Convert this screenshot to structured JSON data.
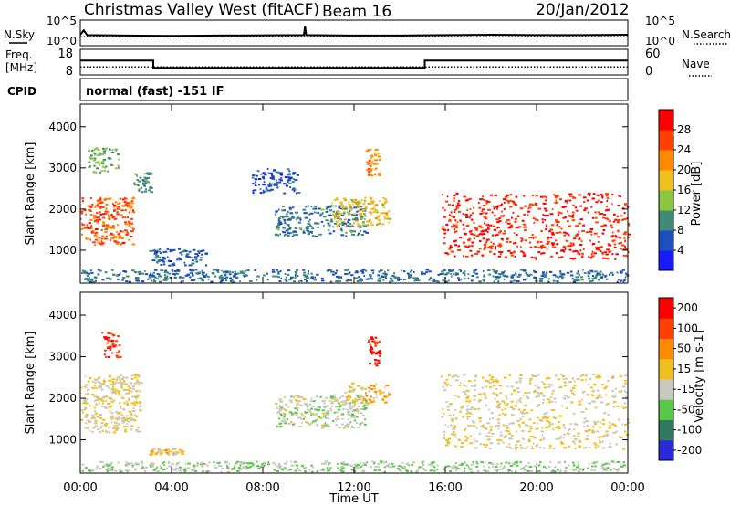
{
  "header": {
    "station": "Christmas Valley West (fitACF)",
    "beam": "Beam 16",
    "date": "20/Jan/2012"
  },
  "labels": {
    "nsky": "N.Sky",
    "nsearch": "N.Search",
    "freq_line1": "Freq.",
    "freq_line2": "[MHz]",
    "nave": "Nave",
    "cpid": "CPID",
    "cpid_text": "normal (fast) -151 IF"
  },
  "chart_data": [
    {
      "type": "line",
      "title": "N.Sky / N.Search",
      "x_ticks": [
        "00:00",
        "04:00",
        "08:00",
        "12:00",
        "16:00",
        "20:00",
        "00:00"
      ],
      "left_ticks": [
        "10^5",
        "10^0"
      ],
      "right_ticks": [
        "10^5",
        "10^0"
      ],
      "series": [
        {
          "name": "N.Sky",
          "style": "solid",
          "x_hours": [
            0,
            0.15,
            0.3,
            2,
            4,
            6,
            9.8,
            9.85,
            9.9,
            12,
            14,
            16,
            18,
            20,
            22,
            24
          ],
          "log10_value": [
            2.5,
            3.6,
            2.4,
            2.3,
            2.2,
            2.3,
            2.4,
            4.6,
            2.4,
            2.3,
            2.3,
            2.4,
            2.5,
            2.4,
            2.4,
            2.5
          ]
        },
        {
          "name": "N.Search",
          "style": "dotted",
          "x_hours": [
            0,
            24
          ],
          "log10_value": [
            2.0,
            2.0
          ]
        }
      ]
    },
    {
      "type": "line",
      "title": "Freq. / Nave",
      "left_ticks": [
        "18",
        "8"
      ],
      "right_ticks": [
        "60",
        "0"
      ],
      "series": [
        {
          "name": "Freq. [MHz]",
          "style": "solid",
          "x_hours": [
            0,
            3.2,
            3.2,
            15.1,
            15.1,
            24
          ],
          "values": [
            14.4,
            14.4,
            10.4,
            10.4,
            14.4,
            14.4
          ]
        },
        {
          "name": "Nave",
          "style": "dotted",
          "x_hours": [
            0,
            24
          ],
          "values": [
            17,
            17
          ]
        }
      ]
    },
    {
      "type": "heatmap",
      "title": "Power",
      "ylabel": "Slant Range [km]",
      "y_ticks": [
        1000,
        2000,
        3000,
        4000
      ],
      "ylim": [
        200,
        4550
      ],
      "xlim_hours": [
        0,
        24
      ],
      "colorbar": {
        "label": "Power [dB]",
        "ticks": [
          4,
          8,
          12,
          16,
          20,
          24,
          28
        ],
        "range": [
          0,
          32
        ],
        "colors": [
          "#1a1aff",
          "#1e4fbe",
          "#3f8b78",
          "#8ac640",
          "#f0c020",
          "#ff8a00",
          "#ff4000",
          "#ff0000"
        ]
      },
      "regions": [
        {
          "t0": 0.0,
          "t1": 2.3,
          "r0": 1150,
          "r1": 2300,
          "power": 25
        },
        {
          "t0": 0.3,
          "t1": 1.7,
          "r0": 2900,
          "r1": 3500,
          "power": 12
        },
        {
          "t0": 2.3,
          "t1": 3.1,
          "r0": 2400,
          "r1": 2900,
          "power": 10
        },
        {
          "t0": 3.0,
          "t1": 5.5,
          "r0": 650,
          "r1": 1050,
          "power": 7
        },
        {
          "t0": 7.5,
          "t1": 9.5,
          "r0": 2400,
          "r1": 3000,
          "power": 6
        },
        {
          "t0": 8.5,
          "t1": 12.5,
          "r0": 1350,
          "r1": 2100,
          "power": 9
        },
        {
          "t0": 11.0,
          "t1": 13.5,
          "r0": 1600,
          "r1": 2300,
          "power": 18
        },
        {
          "t0": 12.5,
          "t1": 13.1,
          "r0": 2800,
          "r1": 3500,
          "power": 22
        },
        {
          "t0": 15.8,
          "t1": 24.0,
          "r0": 800,
          "r1": 2400,
          "power": 28
        },
        {
          "t0": 0.0,
          "t1": 24.0,
          "r0": 250,
          "r1": 550,
          "power": 8
        }
      ]
    },
    {
      "type": "heatmap",
      "title": "Velocity",
      "xlabel": "Time UT",
      "ylabel": "Slant Range [km]",
      "x_ticks": [
        "00:00",
        "04:00",
        "08:00",
        "12:00",
        "16:00",
        "20:00",
        "00:00"
      ],
      "y_ticks": [
        1000,
        2000,
        3000,
        4000
      ],
      "ylim": [
        200,
        4550
      ],
      "xlim_hours": [
        0,
        24
      ],
      "colorbar": {
        "label": "Velocity [m s-1]",
        "ticks": [
          200,
          100,
          50,
          15,
          -15,
          -50,
          -100,
          -200
        ],
        "range": [
          -250,
          250
        ],
        "colors": [
          "#2a2ad8",
          "#307860",
          "#58c848",
          "#c8c8c0",
          "#f0c020",
          "#ff8c00",
          "#ff4000",
          "#ff0000"
        ]
      },
      "regions": [
        {
          "t0": 0.0,
          "t1": 2.6,
          "r0": 1200,
          "r1": 2600,
          "velocity": 0
        },
        {
          "t0": 0.9,
          "t1": 1.7,
          "r0": 3000,
          "r1": 3600,
          "velocity": 180
        },
        {
          "t0": 3.0,
          "t1": 4.5,
          "r0": 650,
          "r1": 800,
          "velocity": 30
        },
        {
          "t0": 8.5,
          "t1": 12.5,
          "r0": 1300,
          "r1": 2100,
          "velocity": -40
        },
        {
          "t0": 11.5,
          "t1": 13.5,
          "r0": 1900,
          "r1": 2400,
          "velocity": 25
        },
        {
          "t0": 12.6,
          "t1": 13.1,
          "r0": 2800,
          "r1": 3500,
          "velocity": 200
        },
        {
          "t0": 15.8,
          "t1": 24.0,
          "r0": 800,
          "r1": 2600,
          "velocity": 0
        },
        {
          "t0": 0.0,
          "t1": 24.0,
          "r0": 250,
          "r1": 500,
          "velocity": -60
        }
      ]
    }
  ]
}
